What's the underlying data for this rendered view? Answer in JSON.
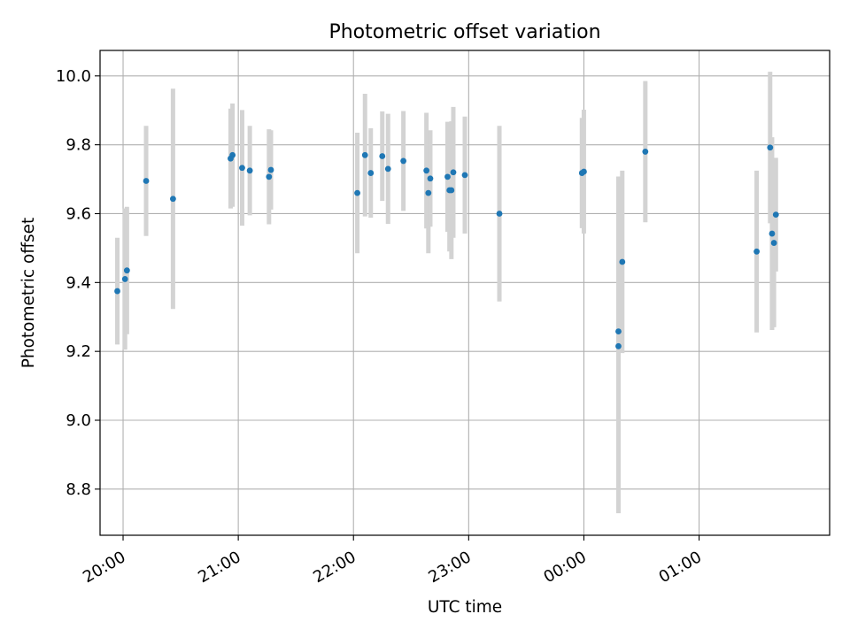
{
  "chart_data": {
    "type": "scatter",
    "title": "Photometric offset variation",
    "xlabel": "UTC time",
    "ylabel": "Photometric offset",
    "grid": true,
    "colors": {
      "point": "#1f77b4",
      "errorbar": "#d3d3d3",
      "grid": "#b0b0b0"
    },
    "xlim": [
      "19:48",
      "26:08"
    ],
    "ylim": [
      8.666,
      10.074
    ],
    "x_ticks": [
      "20:00",
      "21:00",
      "22:00",
      "23:00",
      "00:00",
      "01:00"
    ],
    "x_tick_values": [
      "20:00",
      "21:00",
      "22:00",
      "23:00",
      "24:00",
      "25:00"
    ],
    "y_ticks": [
      "8.8",
      "9.0",
      "9.2",
      "9.4",
      "9.6",
      "9.8",
      "10.0"
    ],
    "y_tick_values": [
      8.8,
      9.0,
      9.2,
      9.4,
      9.6,
      9.8,
      10.0
    ],
    "series": [
      {
        "x": [
          "19:57",
          "20:01",
          "20:02",
          "20:12",
          "20:26",
          "20:56",
          "20:57",
          "21:02",
          "21:06",
          "21:16",
          "21:17",
          "22:02",
          "22:06",
          "22:09",
          "22:15",
          "22:18",
          "22:26",
          "22:38",
          "22:39",
          "22:40",
          "22:49",
          "22:50",
          "22:51",
          "22:52",
          "22:58",
          "23:16",
          "23:59",
          "24:00",
          "24:18",
          "24:18",
          "24:20",
          "24:32",
          "25:30",
          "25:37",
          "25:38",
          "25:39",
          "25:40"
        ],
        "y": [
          9.375,
          9.41,
          9.435,
          9.695,
          9.643,
          9.76,
          9.77,
          9.733,
          9.725,
          9.707,
          9.727,
          9.66,
          9.77,
          9.718,
          9.767,
          9.73,
          9.753,
          9.725,
          9.66,
          9.702,
          9.707,
          9.668,
          9.668,
          9.72,
          9.712,
          9.6,
          9.718,
          9.722,
          9.215,
          9.258,
          9.46,
          9.78,
          9.49,
          9.792,
          9.542,
          9.515,
          9.597
        ],
        "error": [
          0.155,
          0.205,
          0.185,
          0.16,
          0.32,
          0.145,
          0.15,
          0.168,
          0.13,
          0.138,
          0.115,
          0.175,
          0.178,
          0.13,
          0.13,
          0.16,
          0.145,
          0.168,
          0.175,
          0.14,
          0.16,
          0.178,
          0.2,
          0.19,
          0.17,
          0.255,
          0.16,
          0.18,
          0.485,
          0.45,
          0.265,
          0.205,
          0.235,
          0.22,
          0.28,
          0.245,
          0.165
        ]
      }
    ]
  }
}
